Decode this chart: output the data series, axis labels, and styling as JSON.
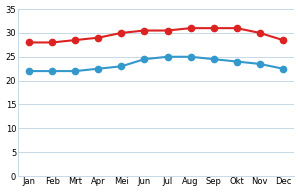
{
  "months": [
    "Jan",
    "Feb",
    "Mrt",
    "Apr",
    "Mei",
    "Jun",
    "Jul",
    "Aug",
    "Sep",
    "Okt",
    "Nov",
    "Dec"
  ],
  "red_line": [
    28,
    28,
    28.5,
    29,
    30,
    30.5,
    30.5,
    31,
    31,
    31,
    30,
    28.5
  ],
  "blue_line": [
    22,
    22,
    22,
    22.5,
    23,
    24.5,
    25,
    25,
    24.5,
    24,
    23.5,
    22.5
  ],
  "red_color": "#dd2222",
  "blue_color": "#3399cc",
  "line_color_grid": "#c8d8e8",
  "background_color": "#ffffff",
  "plot_bg_color": "#ffffff",
  "ylim": [
    0,
    35
  ],
  "yticks": [
    0,
    5,
    10,
    15,
    20,
    25,
    30,
    35
  ],
  "marker_size": 4.5,
  "line_width": 1.5,
  "tick_fontsize": 6.0
}
